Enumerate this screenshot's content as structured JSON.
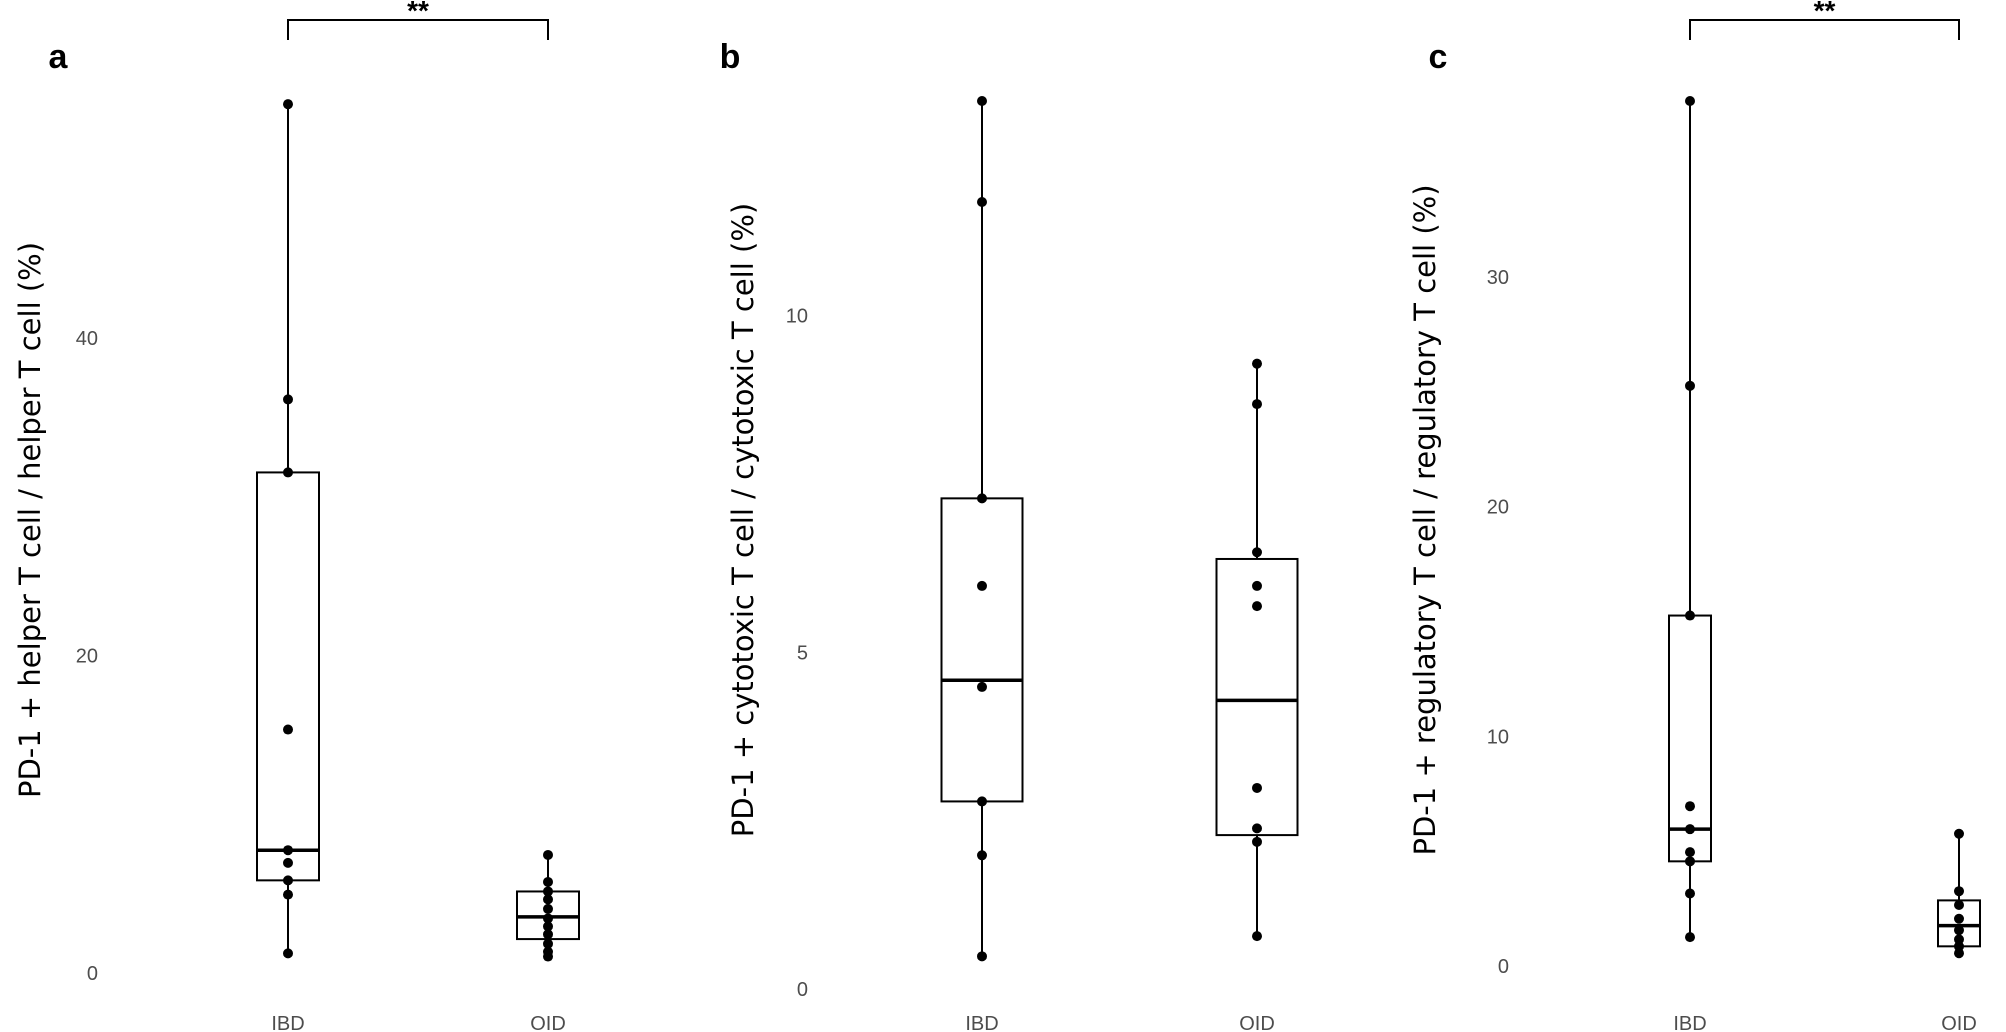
{
  "chart_data": [
    {
      "type": "box",
      "panel_label": "a",
      "ylabel": "PD-1 +   helper T cell / helper T cell (%)",
      "ylim": [
        0,
        55
      ],
      "yticks": [
        0,
        20,
        40
      ],
      "categories": [
        "IBD",
        "OID"
      ],
      "groups": [
        {
          "category": "IBD",
          "q1": 5.9,
          "median": 7.8,
          "q3": 31.6,
          "whisker_low": 1.3,
          "whisker_high": 54.8,
          "points": [
            1.3,
            5.0,
            5.9,
            7.0,
            7.8,
            15.4,
            31.6,
            36.2,
            54.8
          ]
        },
        {
          "category": "OID",
          "q1": 2.2,
          "median": 3.6,
          "q3": 5.2,
          "whisker_low": 1.1,
          "whisker_high": 7.5,
          "points": [
            1.1,
            1.4,
            1.9,
            2.5,
            3.0,
            3.5,
            4.1,
            4.7,
            5.2,
            5.8,
            7.5
          ]
        }
      ],
      "significance": {
        "label": "**",
        "from": "IBD",
        "to": "OID"
      }
    },
    {
      "type": "box",
      "panel_label": "b",
      "ylabel": "PD-1 +   cytotoxic T cell / cytotoxic T cell (%)",
      "ylim": [
        0,
        13.2
      ],
      "yticks": [
        0,
        5,
        10
      ],
      "categories": [
        "IBD",
        "OID"
      ],
      "groups": [
        {
          "category": "IBD",
          "q1": 2.8,
          "median": 4.6,
          "q3": 7.3,
          "whisker_low": 0.5,
          "whisker_high": 13.2,
          "points": [
            0.5,
            2.0,
            2.8,
            4.5,
            6.0,
            7.3,
            11.7,
            13.2
          ]
        },
        {
          "category": "OID",
          "q1": 2.3,
          "median": 4.3,
          "q3": 6.4,
          "whisker_low": 0.8,
          "whisker_high": 9.3,
          "points": [
            0.8,
            2.2,
            2.4,
            3.0,
            5.7,
            6.0,
            6.5,
            8.7,
            9.3
          ]
        }
      ]
    },
    {
      "type": "box",
      "panel_label": "c",
      "ylabel": "PD-1 +   regulatory T cell / regulatory T cell (%)",
      "ylim": [
        0,
        37.7
      ],
      "yticks": [
        0,
        10,
        20,
        30
      ],
      "categories": [
        "IBD",
        "OID"
      ],
      "groups": [
        {
          "category": "IBD",
          "q1": 4.6,
          "median": 6.0,
          "q3": 15.3,
          "whisker_low": 1.3,
          "whisker_high": 37.7,
          "points": [
            1.3,
            3.2,
            4.6,
            5.0,
            6.0,
            7.0,
            15.3,
            25.3,
            37.7
          ]
        },
        {
          "category": "OID",
          "q1": 0.9,
          "median": 1.8,
          "q3": 2.9,
          "whisker_low": 0.6,
          "whisker_high": 5.8,
          "points": [
            0.6,
            0.9,
            1.2,
            1.6,
            2.1,
            2.7,
            3.3,
            5.8
          ]
        }
      ],
      "significance": {
        "label": "**",
        "from": "IBD",
        "to": "OID"
      }
    }
  ]
}
